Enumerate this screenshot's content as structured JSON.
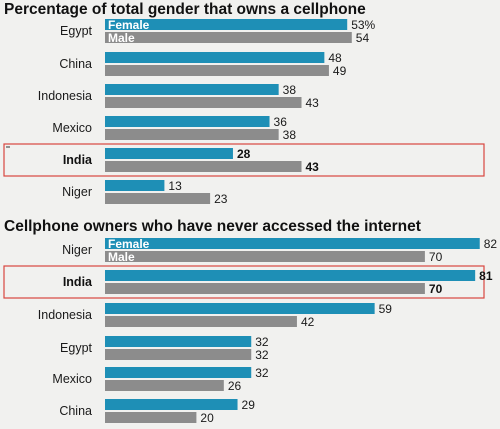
{
  "colors": {
    "female": "#1e8fb6",
    "male": "#8c8c8c",
    "highlight_border": "#d9463f",
    "background": "#f1f1ef"
  },
  "chart_data": [
    {
      "type": "bar",
      "orientation": "horizontal",
      "title": "Percentage of total gender that owns a cellphone",
      "categories": [
        "Egypt",
        "China",
        "Indonesia",
        "Mexico",
        "India",
        "Niger"
      ],
      "highlight": "India",
      "series": [
        {
          "name": "Female",
          "values": [
            53,
            48,
            38,
            36,
            28,
            13
          ],
          "labels": [
            "53%",
            "48",
            "38",
            "36",
            "28",
            "13"
          ]
        },
        {
          "name": "Male",
          "values": [
            54,
            49,
            43,
            38,
            43,
            23
          ],
          "labels": [
            "54",
            "49",
            "43",
            "38",
            "43",
            "23"
          ]
        }
      ]
    },
    {
      "type": "bar",
      "orientation": "horizontal",
      "title": "Cellphone owners who have never accessed the internet",
      "categories": [
        "Niger",
        "India",
        "Indonesia",
        "Egypt",
        "Mexico",
        "China"
      ],
      "highlight": "India",
      "series": [
        {
          "name": "Female",
          "values": [
            82,
            81,
            59,
            32,
            32,
            29
          ],
          "labels": [
            "82",
            "81",
            "59",
            "32",
            "32",
            "29"
          ]
        },
        {
          "name": "Male",
          "values": [
            70,
            70,
            42,
            32,
            26,
            20
          ],
          "labels": [
            "70",
            "70",
            "42",
            "32",
            "26",
            "20"
          ]
        }
      ]
    }
  ]
}
